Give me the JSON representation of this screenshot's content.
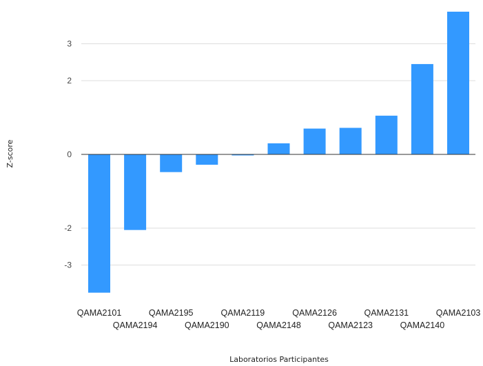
{
  "chart_data": {
    "type": "bar",
    "title": "",
    "xlabel": "Laboratorios Participantes",
    "ylabel": "Z-score",
    "categories": [
      "QAMA2101",
      "QAMA2194",
      "QAMA2195",
      "QAMA2190",
      "QAMA2119",
      "QAMA2148",
      "QAMA2126",
      "QAMA2123",
      "QAMA2131",
      "QAMA2140",
      "QAMA2103"
    ],
    "values": [
      -3.75,
      -2.05,
      -0.48,
      -0.28,
      -0.02,
      0.3,
      0.7,
      0.72,
      1.05,
      2.45,
      3.87
    ],
    "yticks": [
      {
        "value": -3,
        "label": "-3"
      },
      {
        "value": -2,
        "label": "-2"
      },
      {
        "value": 0,
        "label": "0"
      },
      {
        "value": 2,
        "label": "2"
      },
      {
        "value": 3,
        "label": "3"
      }
    ],
    "ylim": [
      -4.1,
      4.1
    ],
    "grid": true,
    "legend": "none",
    "bar_color": "#3399ff",
    "grid_color": "#dddddd",
    "zero_line_color": "#333333"
  }
}
